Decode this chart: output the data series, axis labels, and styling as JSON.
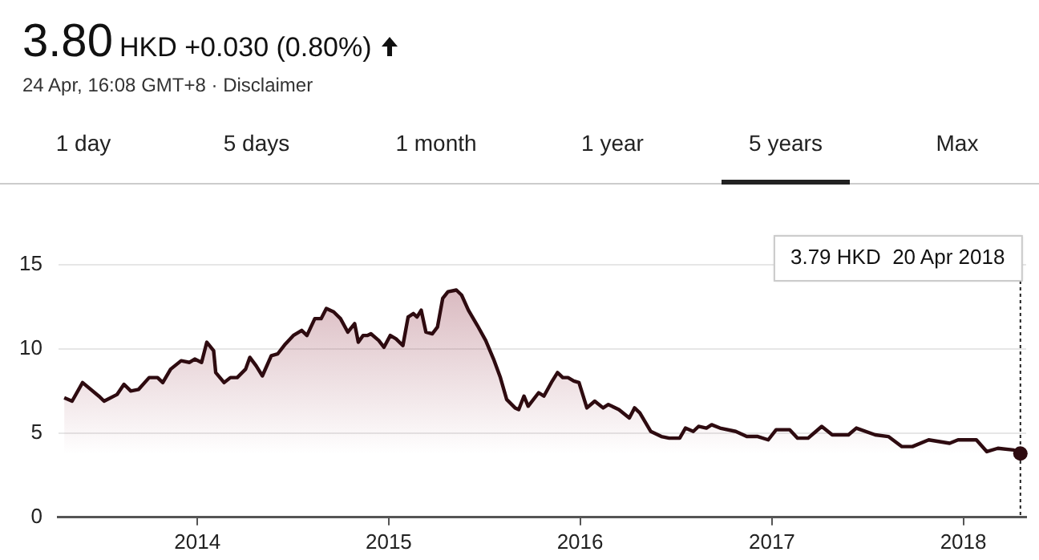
{
  "chart_data": {
    "type": "area",
    "title": "3.80",
    "subtitle": "HKD +0.030 (0.80%)",
    "annotations": [
      "24 Apr, 16:08 GMT+8 · Disclaimer",
      "1 day",
      "5 days",
      "1 month",
      "1 year",
      "5 years",
      "Max"
    ],
    "ref_lines": [
      {
        "axis": "x",
        "value": "2018-04-20",
        "label": "3.79 HKD  20 Apr 2018",
        "color": "#222222",
        "line_style": "dotted"
      }
    ],
    "x": [
      "2013-04-22",
      "2013-05-07",
      "2013-05-27",
      "2013-06-27",
      "2013-07-07",
      "2013-08-01",
      "2013-08-14",
      "2013-08-27",
      "2013-09-11",
      "2013-10-01",
      "2013-10-17",
      "2013-10-27",
      "2013-11-11",
      "2013-12-01",
      "2013-12-17",
      "2013-12-27",
      "2014-01-09",
      "2014-01-19",
      "2014-02-01",
      "2014-02-05",
      "2014-02-21",
      "2014-03-05",
      "2014-03-18",
      "2014-04-03",
      "2014-04-11",
      "2014-04-23",
      "2014-05-05",
      "2014-05-22",
      "2014-06-03",
      "2014-06-18",
      "2014-07-03",
      "2014-07-19",
      "2014-07-29",
      "2014-08-13",
      "2014-08-25",
      "2014-09-04",
      "2014-09-18",
      "2014-10-01",
      "2014-10-15",
      "2014-10-28",
      "2014-11-04",
      "2014-11-13",
      "2014-11-21",
      "2014-11-28",
      "2014-12-13",
      "2014-12-23",
      "2015-01-04",
      "2015-01-15",
      "2015-01-28",
      "2015-02-07",
      "2015-02-17",
      "2015-02-24",
      "2015-03-04",
      "2015-03-13",
      "2015-03-25",
      "2015-04-04",
      "2015-04-14",
      "2015-04-24",
      "2015-05-10",
      "2015-05-20",
      "2015-06-02",
      "2015-06-19",
      "2015-07-05",
      "2015-07-20",
      "2015-08-02",
      "2015-08-14",
      "2015-08-30",
      "2015-09-06",
      "2015-09-16",
      "2015-09-24",
      "2015-10-14",
      "2015-10-24",
      "2015-11-09",
      "2015-11-19",
      "2015-11-29",
      "2015-12-09",
      "2015-12-20",
      "2015-12-30",
      "2016-01-14",
      "2016-01-29",
      "2016-02-14",
      "2016-02-24",
      "2016-03-15",
      "2016-04-04",
      "2016-04-14",
      "2016-04-24",
      "2016-05-15",
      "2016-06-04",
      "2016-06-19",
      "2016-07-09",
      "2016-07-20",
      "2016-08-04",
      "2016-08-14",
      "2016-08-29",
      "2016-09-08",
      "2016-09-24",
      "2016-10-24",
      "2016-11-14",
      "2016-12-05",
      "2016-12-25",
      "2017-01-09",
      "2017-02-04",
      "2017-02-19",
      "2017-03-11",
      "2017-04-06",
      "2017-04-26",
      "2017-05-27",
      "2017-06-11",
      "2017-07-17",
      "2017-08-11",
      "2017-09-06",
      "2017-09-26",
      "2017-10-27",
      "2017-12-06",
      "2017-12-22",
      "2018-01-26",
      "2018-02-15",
      "2018-03-08",
      "2018-04-07",
      "2018-04-20"
    ],
    "series": [
      {
        "color": "#2e0b10",
        "values": [
          7.1,
          6.9,
          8.0,
          7.2,
          6.9,
          7.3,
          7.9,
          7.5,
          7.6,
          8.3,
          8.3,
          8.0,
          8.8,
          9.3,
          9.2,
          9.4,
          9.2,
          10.4,
          9.9,
          8.6,
          8.0,
          8.3,
          8.3,
          8.8,
          9.5,
          9.0,
          8.4,
          9.6,
          9.7,
          10.3,
          10.8,
          11.1,
          10.8,
          11.8,
          11.8,
          12.4,
          12.2,
          11.8,
          11.0,
          11.5,
          10.4,
          10.8,
          10.8,
          10.9,
          10.5,
          10.1,
          10.8,
          10.6,
          10.2,
          11.9,
          12.1,
          11.9,
          12.3,
          11.0,
          10.9,
          11.3,
          13.0,
          13.4,
          13.5,
          13.2,
          12.3,
          11.4,
          10.5,
          9.4,
          8.3,
          7.0,
          6.5,
          6.4,
          7.2,
          6.6,
          7.4,
          7.2,
          8.1,
          8.6,
          8.3,
          8.3,
          8.1,
          8.0,
          6.5,
          6.9,
          6.5,
          6.7,
          6.4,
          5.9,
          6.5,
          6.2,
          5.1,
          4.8,
          4.7,
          4.7,
          5.3,
          5.1,
          5.4,
          5.3,
          5.5,
          5.3,
          5.1,
          4.8,
          4.8,
          4.6,
          5.2,
          5.2,
          4.7,
          4.7,
          5.4,
          4.9,
          4.9,
          5.3,
          4.9,
          4.8,
          4.2,
          4.2,
          4.6,
          4.4,
          4.6,
          4.6,
          3.9,
          4.1,
          4.0,
          3.79
        ]
      }
    ],
    "xlim": [
      "2013-04-11",
      "2018-05-01"
    ],
    "xticks": [
      {
        "value": "2014-01-01",
        "label": "2014"
      },
      {
        "value": "2015-01-01",
        "label": "2015"
      },
      {
        "value": "2016-01-01",
        "label": "2016"
      },
      {
        "value": "2017-01-01",
        "label": "2017"
      },
      {
        "value": "2018-01-01",
        "label": "2018"
      }
    ],
    "ylim": [
      0,
      15
    ],
    "yticks": [
      0,
      5,
      10,
      15
    ],
    "grid": "y"
  }
}
